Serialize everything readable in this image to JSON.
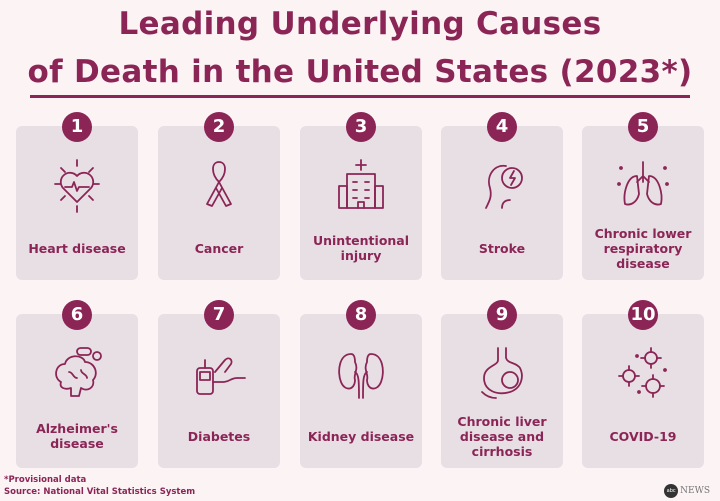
{
  "title": {
    "line1": "Leading Underlying Causes",
    "line2": "of Death in the United States (2023*)"
  },
  "colors": {
    "accent": "#8b2556",
    "card": "#e8dfe5",
    "background": "#fcf3f4"
  },
  "causes": [
    {
      "rank": "1",
      "label": "Heart disease",
      "icon": "heart-pulse-icon"
    },
    {
      "rank": "2",
      "label": "Cancer",
      "icon": "ribbon-icon"
    },
    {
      "rank": "3",
      "label": "Unintentional injury",
      "icon": "hospital-icon"
    },
    {
      "rank": "4",
      "label": "Stroke",
      "icon": "head-lightning-icon"
    },
    {
      "rank": "5",
      "label": "Chronic lower respiratory disease",
      "icon": "lungs-icon"
    },
    {
      "rank": "6",
      "label": "Alzheimer's disease",
      "icon": "brain-pills-icon"
    },
    {
      "rank": "7",
      "label": "Diabetes",
      "icon": "glucose-meter-icon"
    },
    {
      "rank": "8",
      "label": "Kidney disease",
      "icon": "kidneys-icon"
    },
    {
      "rank": "9",
      "label": "Chronic liver disease and cirrhosis",
      "icon": "liver-icon"
    },
    {
      "rank": "10",
      "label": "COVID-19",
      "icon": "virus-icon"
    }
  ],
  "footer": {
    "note": "*Provisional data",
    "source": "Source: National Vital Statistics System",
    "logo": "abc NEWS"
  }
}
